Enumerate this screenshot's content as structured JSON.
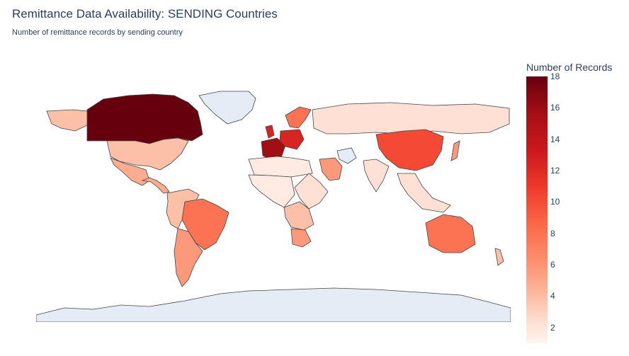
{
  "title": "Remittance Data Availability: SENDING Countries",
  "subtitle": "Number of remittance records by sending country",
  "colorbar": {
    "title": "Number of Records",
    "ticks": [
      "18",
      "16",
      "14",
      "12",
      "10",
      "8",
      "6",
      "4",
      "2"
    ],
    "range": [
      1,
      18
    ],
    "colorscale": [
      "#fff5f0",
      "#fee0d2",
      "#fcbba1",
      "#fc9272",
      "#fb6a4a",
      "#ef3b2c",
      "#cb181d",
      "#a50f15",
      "#67000d"
    ]
  },
  "colors": {
    "no_data": "#e5ecf6",
    "border": "#444444",
    "text": "#2a3f5f"
  },
  "regions": [
    {
      "name": "Canada",
      "value": 18
    },
    {
      "name": "Greenland",
      "value": null
    },
    {
      "name": "United States",
      "value": 5
    },
    {
      "name": "Alaska (US)",
      "value": 5
    },
    {
      "name": "Mexico",
      "value": 6
    },
    {
      "name": "Central America & Caribbean",
      "value": 6
    },
    {
      "name": "Colombia / Venezuela / Peru",
      "value": 5
    },
    {
      "name": "Brazil",
      "value": 9
    },
    {
      "name": "Argentina / Chile",
      "value": 7
    },
    {
      "name": "Spain / France",
      "value": 16
    },
    {
      "name": "United Kingdom",
      "value": 13
    },
    {
      "name": "Germany / Central Europe",
      "value": 13
    },
    {
      "name": "Norway / Sweden",
      "value": 9
    },
    {
      "name": "Russia",
      "value": 3
    },
    {
      "name": "Iran",
      "value": null
    },
    {
      "name": "Saudi Arabia",
      "value": 7
    },
    {
      "name": "China",
      "value": 11
    },
    {
      "name": "India",
      "value": 3
    },
    {
      "name": "North Africa",
      "value": 2
    },
    {
      "name": "West & Central Africa",
      "value": 2
    },
    {
      "name": "East Africa",
      "value": 3
    },
    {
      "name": "Southern Africa",
      "value": 5
    },
    {
      "name": "South Africa",
      "value": 7
    },
    {
      "name": "Southeast Asia",
      "value": 3
    },
    {
      "name": "Japan",
      "value": 7
    },
    {
      "name": "Australia",
      "value": 9
    },
    {
      "name": "New Zealand",
      "value": 5
    },
    {
      "name": "Antarctica",
      "value": null
    }
  ]
}
